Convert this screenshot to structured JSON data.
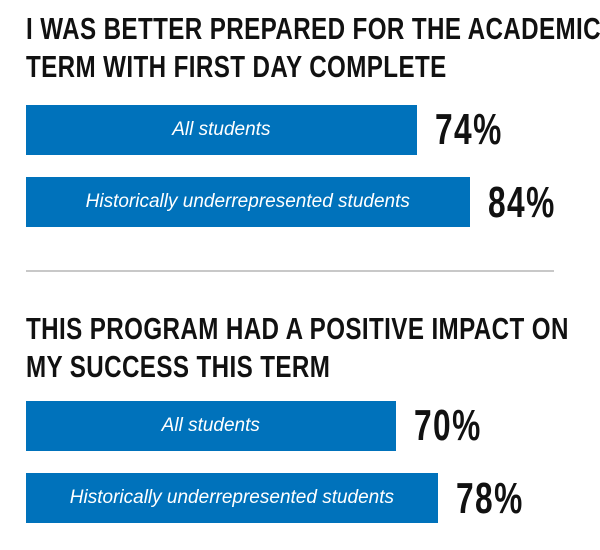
{
  "chart_data": [
    {
      "type": "bar",
      "orientation": "horizontal",
      "title": [
        "I WAS BETTER PREPARED FOR THE ACADEMIC",
        "TERM WITH FIRST DAY COMPLETE"
      ],
      "categories": [
        "All students",
        "Historically underrepresented students"
      ],
      "values": [
        74,
        84
      ],
      "labels": [
        "74%",
        "84%"
      ],
      "color": "#0072bb"
    },
    {
      "type": "bar",
      "orientation": "horizontal",
      "title": [
        "THIS PROGRAM HAD A POSITIVE IMPACT ON",
        "MY SUCCESS THIS TERM"
      ],
      "categories": [
        "All students",
        "Historically underrepresented students"
      ],
      "values": [
        70,
        78
      ],
      "labels": [
        "70%",
        "78%"
      ],
      "color": "#0072bb"
    }
  ]
}
